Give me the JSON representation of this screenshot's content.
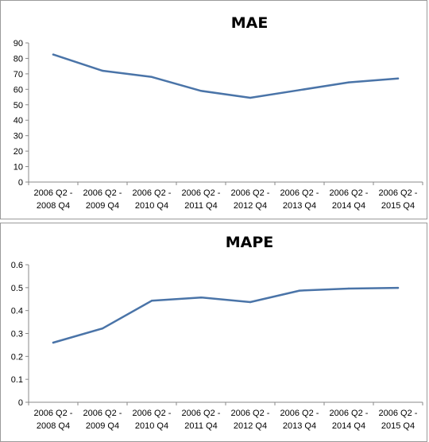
{
  "chart_data": [
    {
      "type": "line",
      "title": "MAE",
      "categories": [
        [
          "2006 Q2 -",
          "2008 Q4"
        ],
        [
          "2006 Q2 -",
          "2009 Q4"
        ],
        [
          "2006 Q2 -",
          "2010 Q4"
        ],
        [
          "2006 Q2 -",
          "2011 Q4"
        ],
        [
          "2006 Q2 -",
          "2012 Q4"
        ],
        [
          "2006 Q2 -",
          "2013 Q4"
        ],
        [
          "2006 Q2 -",
          "2014 Q4"
        ],
        [
          "2006 Q2 -",
          "2015 Q4"
        ]
      ],
      "values": [
        82.5,
        72,
        68,
        59,
        54.5,
        59.5,
        64.5,
        67
      ],
      "ylim": [
        0,
        90
      ],
      "yticks": [
        "0",
        "10",
        "20",
        "30",
        "40",
        "50",
        "60",
        "70",
        "80",
        "90"
      ],
      "ytick_values": [
        0,
        10,
        20,
        30,
        40,
        50,
        60,
        70,
        80,
        90
      ],
      "grid": false,
      "line_color": "#4a74a8"
    },
    {
      "type": "line",
      "title": "MAPE",
      "categories": [
        [
          "2006 Q2 -",
          "2008 Q4"
        ],
        [
          "2006 Q2 -",
          "2009 Q4"
        ],
        [
          "2006 Q2 -",
          "2010 Q4"
        ],
        [
          "2006 Q2 -",
          "2011 Q4"
        ],
        [
          "2006 Q2 -",
          "2012 Q4"
        ],
        [
          "2006 Q2 -",
          "2013 Q4"
        ],
        [
          "2006 Q2 -",
          "2014 Q4"
        ],
        [
          "2006 Q2 -",
          "2015 Q4"
        ]
      ],
      "values": [
        0.26,
        0.322,
        0.443,
        0.457,
        0.437,
        0.487,
        0.496,
        0.499
      ],
      "ylim": [
        0,
        0.6
      ],
      "yticks": [
        "0",
        "0.1",
        "0.2",
        "0.3",
        "0.4",
        "0.5",
        "0.6"
      ],
      "ytick_values": [
        0,
        0.1,
        0.2,
        0.3,
        0.4,
        0.5,
        0.6
      ],
      "grid": false,
      "line_color": "#4a74a8"
    }
  ]
}
